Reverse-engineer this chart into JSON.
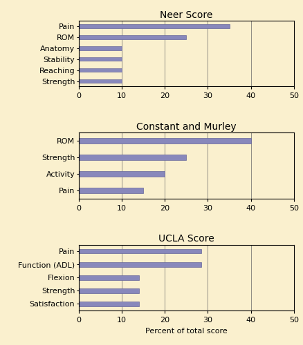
{
  "charts": [
    {
      "title": "Neer Score",
      "categories": [
        "Pain",
        "ROM",
        "Anatomy",
        "Stability",
        "Reaching",
        "Strength"
      ],
      "values": [
        35,
        25,
        10,
        10,
        10,
        10
      ]
    },
    {
      "title": "Constant and Murley",
      "categories": [
        "ROM",
        "Strength",
        "Activity",
        "Pain"
      ],
      "values": [
        40,
        25,
        20,
        15
      ]
    },
    {
      "title": "UCLA Score",
      "categories": [
        "Pain",
        "Function (ADL)",
        "Flexion",
        "Strength",
        "Satisfaction"
      ],
      "values": [
        28.5,
        28.5,
        14,
        14,
        14
      ]
    }
  ],
  "xlim": [
    0,
    50
  ],
  "xticks": [
    0,
    10,
    20,
    30,
    40,
    50
  ],
  "bar_color": "#8888BB",
  "bar_edgecolor": "#666699",
  "background_color": "#FAF0CE",
  "grid_color": "#666666",
  "xlabel": "Percent of total score",
  "title_fontsize": 10,
  "tick_fontsize": 8,
  "label_fontsize": 8,
  "bar_height": 0.35
}
